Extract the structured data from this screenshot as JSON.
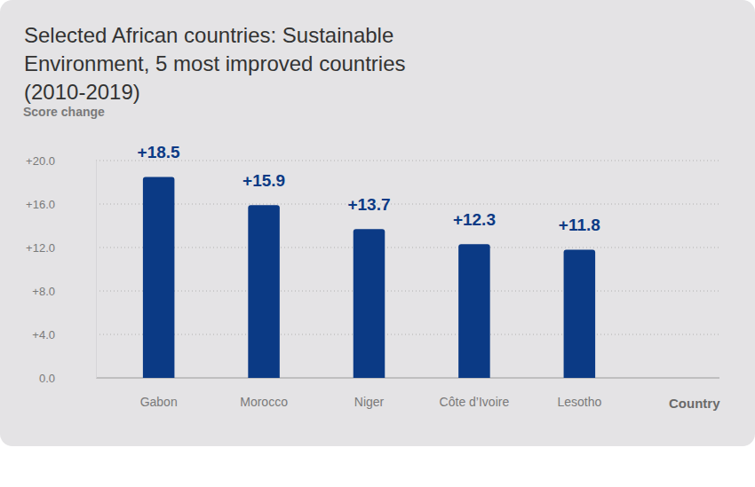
{
  "chart_data": {
    "type": "bar",
    "title": "Selected African countries: Sustainable Environment, 5 most improved countries (2010-2019)",
    "y_label": "Score change",
    "x_label": "Country",
    "categories": [
      "Gabon",
      "Morocco",
      "Niger",
      "Côte d’Ivoire",
      "Lesotho"
    ],
    "values": [
      18.5,
      15.9,
      13.7,
      12.3,
      11.8
    ],
    "value_labels": [
      "+18.5",
      "+15.9",
      "+13.7",
      "+12.3",
      "+11.8"
    ],
    "color": "#0b3a85",
    "ylim": [
      0,
      20
    ],
    "yticks": [
      {
        "value": 0,
        "label": "0.0"
      },
      {
        "value": 4,
        "label": "+4.0"
      },
      {
        "value": 8,
        "label": "+8.0"
      },
      {
        "value": 12,
        "label": "+12.0"
      },
      {
        "value": 16,
        "label": "+16.0"
      },
      {
        "value": 20,
        "label": "+20.0"
      }
    ],
    "grid": true,
    "data_labels": true
  }
}
